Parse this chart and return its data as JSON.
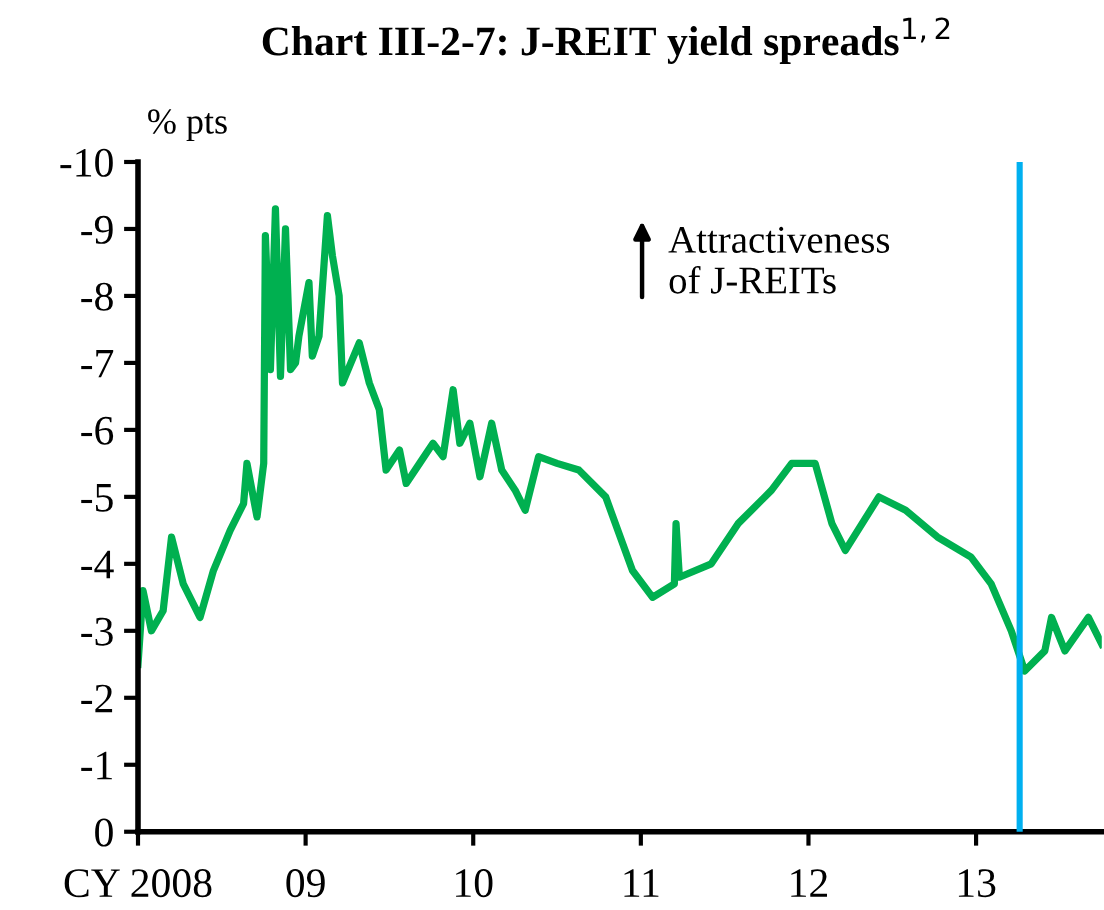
{
  "chart_data": {
    "type": "line",
    "title": "Chart III-2-7: J-REIT yield spreads$^{1,2}$",
    "ylabel": "% pts",
    "annotations": [
      "Attractiveness\nof J-REITs"
    ],
    "series": [
      {
        "color": "#00b050",
        "x": [
          2008.0,
          2008.03,
          2008.08,
          2008.15,
          2008.2,
          2008.27,
          2008.37,
          2008.45,
          2008.55,
          2008.63,
          2008.65,
          2008.71,
          2008.75,
          2008.76,
          2008.79,
          2008.82,
          2008.85,
          2008.88,
          2008.91,
          2008.94,
          2008.96,
          2009.02,
          2009.04,
          2009.08,
          2009.13,
          2009.16,
          2009.2,
          2009.22,
          2009.32,
          2009.38,
          2009.44,
          2009.48,
          2009.56,
          2009.6,
          2009.68,
          2009.76,
          2009.82,
          2009.88,
          2009.92,
          2009.98,
          2010.04,
          2010.11,
          2010.17,
          2010.25,
          2010.31,
          2010.39,
          2010.5,
          2010.63,
          2010.79,
          2010.95,
          2011.07,
          2011.2,
          2011.21,
          2011.23,
          2011.42,
          2011.58,
          2011.78,
          2011.9,
          2012.04,
          2012.14,
          2012.22,
          2012.42,
          2012.58,
          2012.77,
          2012.97,
          2013.09,
          2013.21,
          2013.29,
          2013.41,
          2013.45,
          2013.53,
          2013.67,
          2013.75
        ],
        "values": [
          -2.5,
          -3.6,
          -3.0,
          -3.3,
          -4.4,
          -3.7,
          -3.2,
          -3.9,
          -4.5,
          -4.9,
          -5.5,
          -4.7,
          -5.5,
          -8.9,
          -6.9,
          -9.3,
          -6.8,
          -9.0,
          -6.9,
          -7.0,
          -7.4,
          -8.2,
          -7.1,
          -7.4,
          -9.2,
          -8.6,
          -8.0,
          -6.7,
          -7.3,
          -6.7,
          -6.3,
          -5.4,
          -5.7,
          -5.2,
          -5.5,
          -5.8,
          -5.6,
          -6.6,
          -5.8,
          -6.1,
          -5.3,
          -6.1,
          -5.4,
          -5.1,
          -4.8,
          -5.6,
          -5.5,
          -5.4,
          -5.0,
          -3.9,
          -3.5,
          -3.7,
          -4.6,
          -3.8,
          -4.0,
          -4.6,
          -5.1,
          -5.5,
          -5.5,
          -4.6,
          -4.2,
          -5.0,
          -4.8,
          -4.4,
          -4.1,
          -3.7,
          -3.0,
          -2.4,
          -2.7,
          -3.2,
          -2.7,
          -3.2,
          -2.8
        ]
      }
    ],
    "xlim": [
      2008.0,
      2013.75
    ],
    "xticks": [
      {
        "value": 2008,
        "label": "CY 2008"
      },
      {
        "value": 2009,
        "label": "09"
      },
      {
        "value": 2010,
        "label": "10"
      },
      {
        "value": 2011,
        "label": "11"
      },
      {
        "value": 2012,
        "label": "12"
      },
      {
        "value": 2013,
        "label": "13"
      }
    ],
    "ylim": [
      0,
      -10
    ],
    "yticks": [
      0,
      -1,
      -2,
      -3,
      -4,
      -5,
      -6,
      -7,
      -8,
      -9,
      -10
    ],
    "ref_lines": [
      {
        "axis": "x",
        "value": 2013.26,
        "color": "#00b0f0"
      }
    ],
    "grid": false,
    "legend": false,
    "marker": "none",
    "line_style": "solid"
  }
}
